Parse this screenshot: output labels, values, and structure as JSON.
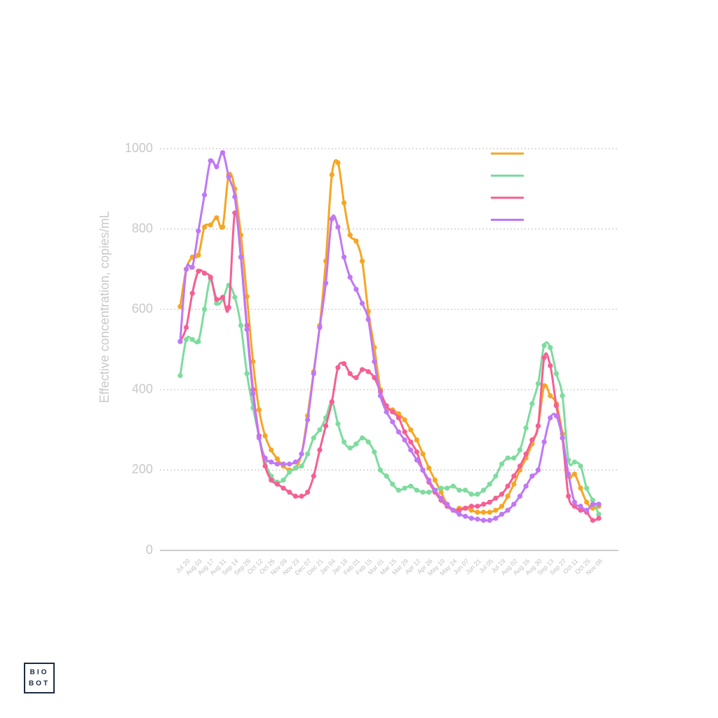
{
  "chart_data": {
    "type": "line",
    "y_label": "Effective concentration, copies/mL",
    "categories": [
      null,
      "Jul 20",
      null,
      "Aug 03",
      null,
      "Aug 17",
      null,
      "Aug 31",
      null,
      "Sep 14",
      null,
      "Sep 28",
      null,
      "Oct 12",
      null,
      "Oct 26",
      null,
      "Nov 09",
      null,
      "Nov 23",
      null,
      "Dec 07",
      null,
      "Dec 21",
      null,
      "Jan 04",
      null,
      "Jan 18",
      null,
      "Feb 01",
      null,
      "Feb 15",
      null,
      "Mar 01",
      null,
      "Mar 15",
      null,
      "Mar 29",
      null,
      "Apr 12",
      null,
      "Apr 26",
      null,
      "May 10",
      null,
      "May 24",
      null,
      "Jun 07",
      null,
      "Jun 21",
      null,
      "Jul 05",
      null,
      "Jul 19",
      null,
      "Aug 02",
      null,
      "Aug 16",
      null,
      "Aug 30",
      null,
      "Sep 13",
      null,
      "Sep 27",
      null,
      "Oct 11",
      null,
      "Oct 25",
      null,
      "Nov 08"
    ],
    "series": [
      {
        "color": "#f5a623",
        "values": [
          607,
          700,
          730,
          735,
          805,
          810,
          828,
          805,
          935,
          900,
          785,
          632,
          470,
          350,
          285,
          250,
          228,
          210,
          200,
          205,
          240,
          335,
          445,
          560,
          720,
          935,
          965,
          865,
          785,
          770,
          720,
          595,
          505,
          400,
          355,
          350,
          340,
          325,
          300,
          275,
          240,
          205,
          175,
          145,
          115,
          100,
          105,
          105,
          100,
          95,
          95,
          95,
          100,
          110,
          135,
          165,
          200,
          230,
          265,
          310,
          410,
          385,
          365,
          290,
          185,
          190,
          155,
          120,
          105,
          110
        ]
      },
      {
        "color": "#7ddc9e",
        "values": [
          435,
          525,
          525,
          520,
          600,
          675,
          615,
          625,
          660,
          630,
          560,
          440,
          355,
          285,
          220,
          185,
          170,
          175,
          195,
          205,
          210,
          240,
          280,
          300,
          330,
          370,
          315,
          270,
          255,
          265,
          280,
          270,
          245,
          200,
          185,
          165,
          150,
          155,
          160,
          150,
          145,
          145,
          150,
          155,
          155,
          160,
          150,
          150,
          140,
          140,
          150,
          165,
          185,
          215,
          230,
          230,
          250,
          305,
          365,
          415,
          510,
          505,
          440,
          385,
          225,
          220,
          210,
          155,
          125,
          90
        ]
      },
      {
        "color": "#f55f93",
        "values": [
          520,
          555,
          640,
          695,
          690,
          680,
          625,
          630,
          605,
          840,
          730,
          560,
          400,
          285,
          210,
          175,
          165,
          155,
          145,
          135,
          135,
          145,
          185,
          250,
          310,
          370,
          455,
          465,
          440,
          430,
          450,
          445,
          430,
          395,
          360,
          345,
          330,
          295,
          270,
          245,
          200,
          170,
          145,
          125,
          110,
          100,
          100,
          105,
          110,
          110,
          115,
          120,
          130,
          140,
          160,
          185,
          210,
          240,
          275,
          310,
          480,
          460,
          360,
          280,
          135,
          110,
          100,
          95,
          75,
          80
        ]
      },
      {
        "color": "#c077f5",
        "values": [
          520,
          700,
          705,
          795,
          885,
          970,
          955,
          990,
          930,
          880,
          730,
          550,
          390,
          280,
          230,
          220,
          215,
          215,
          215,
          220,
          240,
          325,
          440,
          555,
          665,
          825,
          805,
          730,
          680,
          650,
          615,
          575,
          470,
          385,
          345,
          320,
          295,
          275,
          250,
          225,
          200,
          175,
          150,
          130,
          115,
          100,
          90,
          85,
          80,
          78,
          75,
          75,
          80,
          90,
          100,
          115,
          135,
          160,
          185,
          200,
          270,
          330,
          335,
          280,
          190,
          120,
          110,
          100,
          115,
          115
        ]
      }
    ],
    "ylim": [
      0,
      1000
    ],
    "yticks": [
      0,
      200,
      400,
      600,
      800,
      1000
    ],
    "grid": true,
    "legend": "upper right",
    "logo": [
      "BIO",
      "BOT"
    ]
  }
}
